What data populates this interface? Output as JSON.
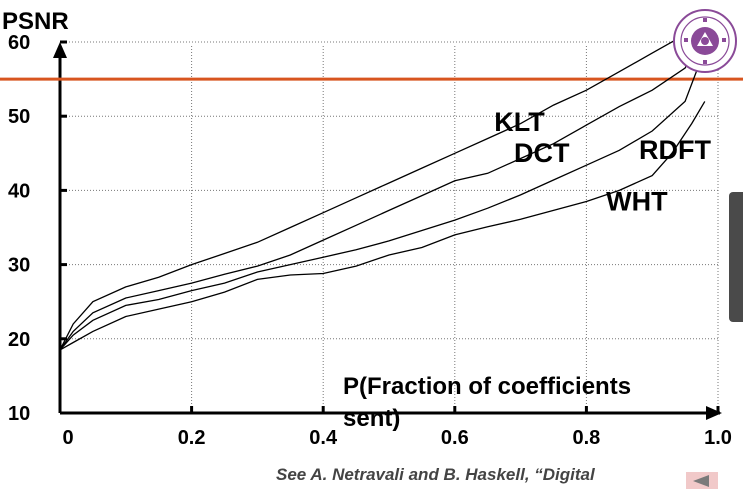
{
  "chart_data": {
    "type": "line",
    "ylabel": "PSNR",
    "xlabel": "P(Fraction of coefficients sent)",
    "xlim": [
      0,
      1.0
    ],
    "ylim": [
      10,
      60
    ],
    "x_ticks": [
      "0",
      "0.2",
      "0.4",
      "0.6",
      "0.8",
      "1.0"
    ],
    "y_ticks": [
      "10",
      "20",
      "30",
      "40",
      "50",
      "60"
    ],
    "grid": true,
    "reference_line": {
      "y": 55,
      "color": "#d8551f"
    },
    "series": [
      {
        "name": "KLT",
        "x": [
          0,
          0.02,
          0.05,
          0.1,
          0.15,
          0.2,
          0.25,
          0.3,
          0.35,
          0.4,
          0.45,
          0.5,
          0.55,
          0.6,
          0.65,
          0.7,
          0.75,
          0.8,
          0.85,
          0.9,
          0.95,
          0.98
        ],
        "y": [
          18.5,
          22,
          25,
          27,
          28.3,
          30,
          31.5,
          33,
          35,
          37,
          39,
          41,
          43,
          45,
          47,
          49,
          51.5,
          53.5,
          56,
          58.5,
          61,
          62.5
        ]
      },
      {
        "name": "DCT",
        "x": [
          0,
          0.02,
          0.05,
          0.1,
          0.15,
          0.2,
          0.25,
          0.3,
          0.35,
          0.4,
          0.45,
          0.5,
          0.55,
          0.6,
          0.65,
          0.7,
          0.75,
          0.8,
          0.85,
          0.9,
          0.95,
          0.98
        ],
        "y": [
          18.5,
          21,
          23.5,
          25.5,
          26.5,
          27.5,
          28.7,
          29.8,
          31.3,
          33.3,
          35.3,
          37.3,
          39.3,
          41.3,
          42.3,
          44.3,
          46.3,
          48.8,
          51.3,
          53.5,
          56.5,
          61.5
        ]
      },
      {
        "name": "RDFT",
        "x": [
          0,
          0.02,
          0.05,
          0.1,
          0.15,
          0.2,
          0.25,
          0.3,
          0.35,
          0.4,
          0.45,
          0.5,
          0.55,
          0.6,
          0.65,
          0.7,
          0.75,
          0.8,
          0.85,
          0.9,
          0.95,
          0.98
        ],
        "y": [
          18.5,
          20.5,
          22.5,
          24.5,
          25.3,
          26.5,
          27.5,
          29,
          30,
          31,
          32,
          33.2,
          34.6,
          36,
          37.6,
          39.4,
          41.4,
          43.4,
          45.4,
          48,
          52,
          59
        ]
      },
      {
        "name": "WHT",
        "x": [
          0,
          0.02,
          0.05,
          0.1,
          0.15,
          0.2,
          0.25,
          0.3,
          0.35,
          0.4,
          0.45,
          0.5,
          0.55,
          0.6,
          0.65,
          0.7,
          0.75,
          0.8,
          0.85,
          0.9,
          0.93,
          0.96,
          0.98
        ],
        "y": [
          18.5,
          19.5,
          21,
          23,
          24,
          25,
          26.3,
          28,
          28.6,
          28.8,
          29.8,
          31.3,
          32.3,
          34,
          35.1,
          36.1,
          37.3,
          38.5,
          40,
          42,
          45,
          49,
          52
        ]
      }
    ],
    "series_labels": [
      {
        "series": "KLT",
        "x": 0.66,
        "y": 48
      },
      {
        "series": "DCT",
        "x": 0.69,
        "y": 43.8
      },
      {
        "series": "RDFT",
        "x": 0.88,
        "y": 44.2
      },
      {
        "series": "WHT",
        "x": 0.83,
        "y": 37.3
      }
    ]
  },
  "citation": "See  A. Netravali and B. Haskell, “Digital",
  "icons": {
    "logo": "university-seal-icon",
    "side_tab": "side-panel-tab-icon",
    "nav": "previous-slide-icon"
  }
}
